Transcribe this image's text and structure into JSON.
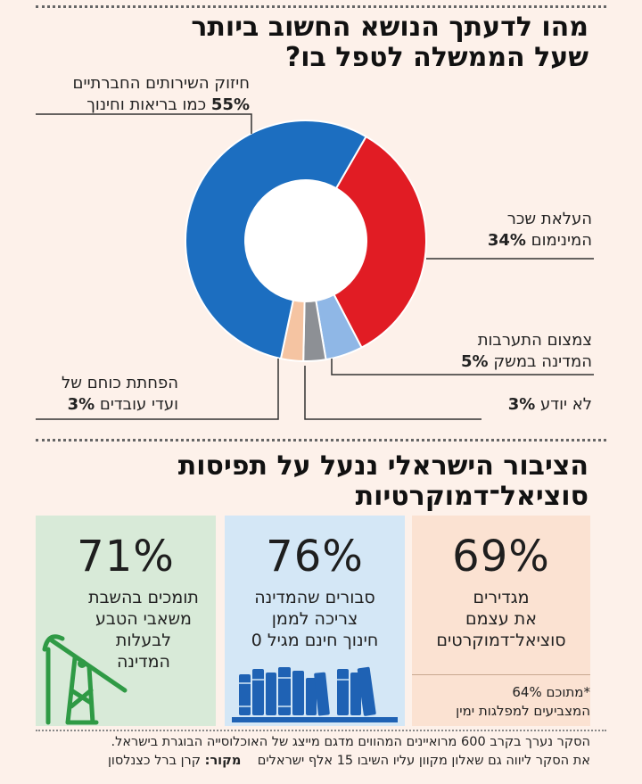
{
  "chart_data": [
    {
      "type": "pie",
      "style": "donut",
      "title": "מהו לדעתך הנושא החשוב ביותר שעל הממשלה לטפל בו?",
      "slices": [
        {
          "label": "חיזוק השירותים החברתיים כמו בריאות וחינוך",
          "label_line1": "חיזוק השירותים החברתיים",
          "label_line2": "כמו בריאות וחינוך",
          "value": 55,
          "value_text": "55%",
          "color": "#1c6ec0"
        },
        {
          "label": "העלאת שכר המינימום",
          "label_line1": "העלאת שכר",
          "label_line2": "המינימום",
          "value": 34,
          "value_text": "34%",
          "color": "#e11c24"
        },
        {
          "label": "צמצום התערבות המדינה במשק",
          "label_line1": "צמצום התערבות",
          "label_line2": "המדינה במשק",
          "value": 5,
          "value_text": "5%",
          "color": "#8fb7e6"
        },
        {
          "label": "לא יודע",
          "label_line1": "לא יודע",
          "label_line2": "",
          "value": 3,
          "value_text": "3%",
          "color": "#8d9095"
        },
        {
          "label": "הפחתת כוחם של ועדי עובדים",
          "label_line1": "הפחתת כוחם של",
          "label_line2": "ועדי עובדים",
          "value": 3,
          "value_text": "3%",
          "color": "#f5c4a2"
        }
      ]
    },
    {
      "type": "table",
      "title": "הציבור הישראלי ננעל על תפיסות סוציאל־דמוקרטיות",
      "stats": [
        {
          "value": 69,
          "value_text": "69%",
          "line1": "מגדירים",
          "line2": "את עצמם",
          "line3": "סוציאל־דמוקרטים",
          "color": "#fbe2d2"
        },
        {
          "value": 76,
          "value_text": "76%",
          "line1": "סבורים שהמדינה",
          "line2": "צריכה לממן",
          "line3": "חינוך חינם מגיל 0",
          "color": "#d4e7f6"
        },
        {
          "value": 71,
          "value_text": "71%",
          "line1": "תומכים בהשבת",
          "line2": "משאבי הטבע",
          "line3": "לבעלות",
          "line4": "המדינה",
          "color": "#d8ead8"
        }
      ]
    }
  ],
  "section1": {
    "title_line1": "מהו לדעתך הנושא החשוב ביותר",
    "title_line2": "שעל הממשלה לטפל בו?"
  },
  "section2": {
    "title_line1": "הציבור הישראלי ננעל על תפיסות",
    "title_line2": "סוציאל־דמוקרטיות"
  },
  "footnote": {
    "line1": "*מתוכם 64%",
    "line2": "המצביעים למפלגות ימין"
  },
  "survey_note": {
    "line1": "הסקר נערך בקרב 600 מרואיינים המהווים מדגם מייצג של האוכלוסייה הבוגרת בישראל.",
    "line2": "את הסקר ליווה גם שאלון מקוון עליו השיבו 15 אלף ישראלים",
    "source_label": "מקור:",
    "source_name": "קרן ברל כצנלסון"
  },
  "colors": {
    "bg": "#fdf1ea",
    "books": "#1f62b4",
    "pump": "#2f9a45"
  }
}
